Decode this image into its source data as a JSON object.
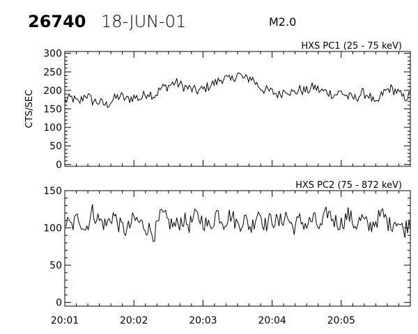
{
  "header": {
    "burst_number": "26740",
    "date": "18-JUN-01",
    "flare_class": "M2.0"
  },
  "chart_data": [
    {
      "type": "line",
      "title": "HXS PC1 (25 - 75 keV)",
      "ylabel": "CTS/SEC",
      "xlabel": "",
      "x_start": "20:01",
      "x_end": "20:06",
      "xlim": [
        0,
        5
      ],
      "ylim": [
        -5,
        305
      ],
      "yticks": [
        0,
        50,
        100,
        150,
        200,
        250,
        300
      ],
      "xtick_labels": [
        "20:01",
        "20:02",
        "20:03",
        "20:04",
        "20:05"
      ],
      "show_xtick_labels": false,
      "grid": false,
      "series": [
        {
          "name": "HXS PC1",
          "x": [
            0,
            0.1,
            0.2,
            0.3,
            0.4,
            0.5,
            0.6,
            0.7,
            0.8,
            0.9,
            1.0,
            1.1,
            1.2,
            1.3,
            1.4,
            1.5,
            1.6,
            1.7,
            1.8,
            1.9,
            2.0,
            2.1,
            2.2,
            2.3,
            2.4,
            2.5,
            2.6,
            2.7,
            2.8,
            2.9,
            3.0,
            3.1,
            3.2,
            3.3,
            3.4,
            3.5,
            3.6,
            3.7,
            3.8,
            3.9,
            4.0,
            4.1,
            4.2,
            4.3,
            4.4,
            4.5,
            4.6,
            4.7,
            4.8,
            4.9,
            5.0
          ],
          "values": [
            172,
            180,
            165,
            190,
            172,
            168,
            160,
            175,
            185,
            175,
            182,
            178,
            195,
            186,
            206,
            212,
            222,
            212,
            205,
            198,
            202,
            214,
            222,
            235,
            225,
            246,
            230,
            235,
            212,
            200,
            196,
            188,
            204,
            192,
            202,
            198,
            210,
            198,
            196,
            188,
            196,
            182,
            178,
            192,
            188,
            158,
            192,
            205,
            198,
            180,
            186
          ]
        }
      ]
    },
    {
      "type": "line",
      "title": "HXS PC2 (75 - 872 keV)",
      "ylabel": "",
      "xlabel": "",
      "x_start": "20:01",
      "x_end": "20:06",
      "xlim": [
        0,
        5
      ],
      "ylim": [
        -5,
        150
      ],
      "yticks": [
        0,
        50,
        100,
        150
      ],
      "xtick_labels": [
        "20:01",
        "20:02",
        "20:03",
        "20:04",
        "20:05"
      ],
      "show_xtick_labels": true,
      "grid": false,
      "series": [
        {
          "name": "HXS PC2",
          "x": [
            0,
            0.1,
            0.2,
            0.3,
            0.4,
            0.5,
            0.6,
            0.7,
            0.8,
            0.9,
            1.0,
            1.1,
            1.2,
            1.3,
            1.4,
            1.5,
            1.6,
            1.7,
            1.8,
            1.9,
            2.0,
            2.1,
            2.2,
            2.3,
            2.4,
            2.5,
            2.6,
            2.7,
            2.8,
            2.9,
            3.0,
            3.1,
            3.2,
            3.3,
            3.4,
            3.5,
            3.6,
            3.7,
            3.8,
            3.9,
            4.0,
            4.1,
            4.2,
            4.3,
            4.4,
            4.5,
            4.6,
            4.7,
            4.8,
            4.9,
            5.0
          ],
          "values": [
            108,
            102,
            115,
            98,
            122,
            110,
            104,
            118,
            102,
            96,
            112,
            106,
            100,
            92,
            118,
            108,
            102,
            112,
            104,
            116,
            110,
            100,
            122,
            108,
            118,
            104,
            112,
            100,
            124,
            104,
            112,
            106,
            118,
            100,
            110,
            104,
            112,
            98,
            122,
            110,
            106,
            118,
            104,
            112,
            100,
            110,
            118,
            104,
            112,
            96,
            110
          ]
        }
      ]
    }
  ]
}
